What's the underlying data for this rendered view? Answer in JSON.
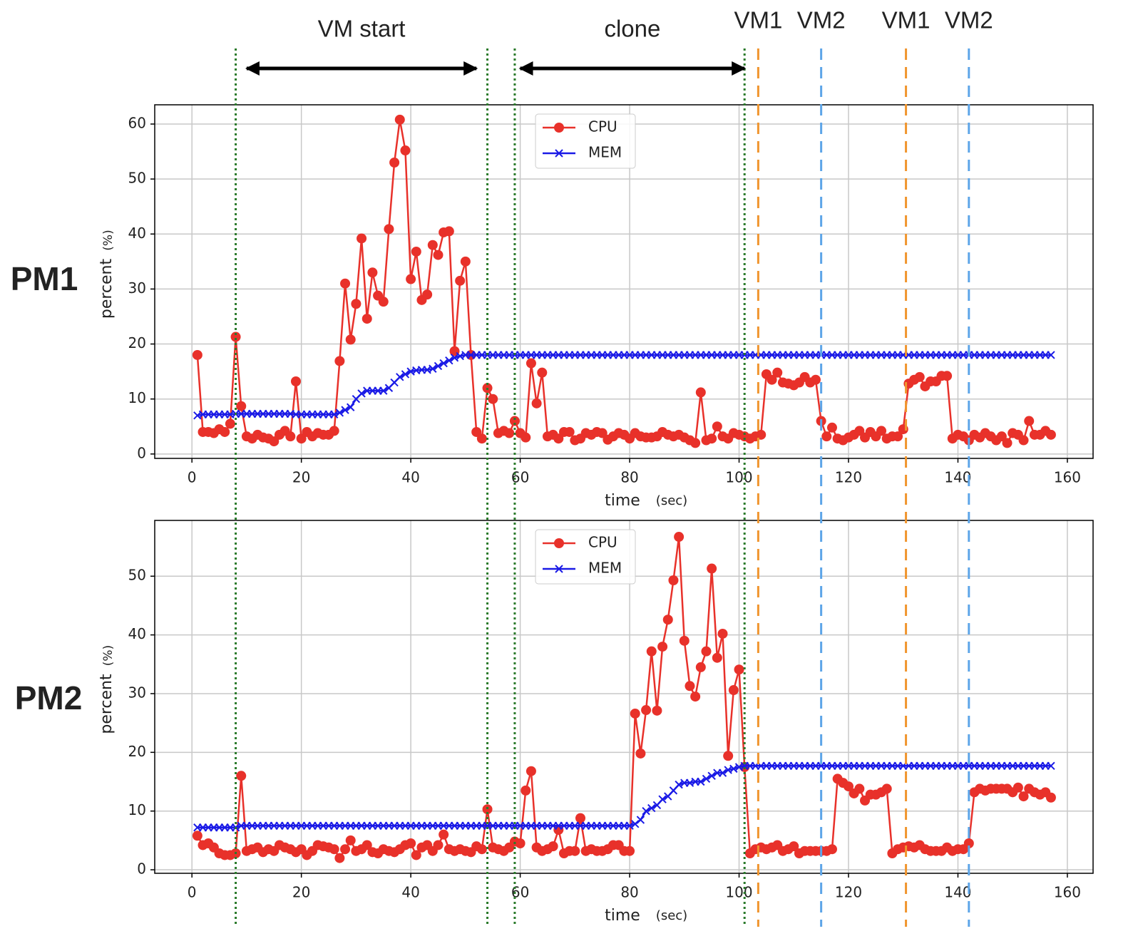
{
  "chart_data": [
    {
      "type": "line",
      "panel_label": "PM1",
      "xlabel": "time",
      "xunit": "(sec)",
      "ylabel": "percent",
      "yunit": "(%)",
      "xlim": [
        -6.8,
        164.7
      ],
      "ylim": [
        -0.8,
        63.5
      ],
      "xticks": [
        0,
        20,
        40,
        60,
        80,
        100,
        120,
        140,
        160
      ],
      "yticks": [
        0,
        10,
        20,
        30,
        40,
        50,
        60
      ],
      "grid": true,
      "legend": "upper center",
      "x": [
        1,
        2,
        3,
        4,
        5,
        6,
        7,
        8,
        9,
        10,
        11,
        12,
        13,
        14,
        15,
        16,
        17,
        18,
        19,
        20,
        21,
        22,
        23,
        24,
        25,
        26,
        27,
        28,
        29,
        30,
        31,
        32,
        33,
        34,
        35,
        36,
        37,
        38,
        39,
        40,
        41,
        42,
        43,
        44,
        45,
        46,
        47,
        48,
        49,
        50,
        51,
        52,
        53,
        54,
        55,
        56,
        57,
        58,
        59,
        60,
        61,
        62,
        63,
        64,
        65,
        66,
        67,
        68,
        69,
        70,
        71,
        72,
        73,
        74,
        75,
        76,
        77,
        78,
        79,
        80,
        81,
        82,
        83,
        84,
        85,
        86,
        87,
        88,
        89,
        90,
        91,
        92,
        93,
        94,
        95,
        96,
        97,
        98,
        99,
        100,
        101,
        102,
        103,
        104,
        105,
        106,
        107,
        108,
        109,
        110,
        111,
        112,
        113,
        114,
        115,
        116,
        117,
        118,
        119,
        120,
        121,
        122,
        123,
        124,
        125,
        126,
        127,
        128,
        129,
        130,
        131,
        132,
        133,
        134,
        135,
        136,
        137,
        138,
        139,
        140,
        141,
        142,
        143,
        144,
        145,
        146,
        147,
        148,
        149,
        150,
        151,
        152,
        153,
        154,
        155,
        156,
        157
      ],
      "series": [
        {
          "name": "CPU",
          "color": "#e8312a",
          "marker": "o",
          "values": [
            18,
            4,
            4,
            3.8,
            4.5,
            4,
            5.5,
            21.3,
            8.7,
            3.2,
            2.8,
            3.5,
            3,
            2.8,
            2.3,
            3.5,
            4.2,
            3.2,
            13.2,
            2.8,
            4,
            3.2,
            3.8,
            3.5,
            3.5,
            4.2,
            16.9,
            31,
            20.8,
            27.3,
            39.2,
            24.6,
            33,
            28.8,
            27.7,
            40.9,
            53,
            60.8,
            55.2,
            31.8,
            36.8,
            28,
            29,
            38,
            36.2,
            40.3,
            40.5,
            18.7,
            31.5,
            35,
            18,
            4,
            2.8,
            12,
            10,
            3.8,
            4.2,
            3.8,
            6,
            3.8,
            3,
            16.5,
            9.2,
            14.8,
            3.2,
            3.5,
            2.8,
            4,
            4,
            2.5,
            2.8,
            3.8,
            3.5,
            4,
            3.8,
            2.6,
            3.2,
            3.8,
            3.5,
            2.8,
            3.8,
            3.2,
            3,
            3,
            3.2,
            4,
            3.5,
            3.2,
            3.5,
            3,
            2.5,
            2,
            11.2,
            2.5,
            2.8,
            5,
            3.2,
            2.8,
            3.8,
            3.5,
            3.2,
            2.8,
            3.2,
            3.5,
            14.5,
            13.5,
            14.8,
            13,
            12.8,
            12.5,
            13,
            14,
            13,
            13.5,
            6,
            3.2,
            4.8,
            2.8,
            2.5,
            3,
            3.5,
            4.2,
            3,
            4,
            3.2,
            4.2,
            2.8,
            3.2,
            3.2,
            4.5,
            12.8,
            13.5,
            14,
            12.3,
            13.2,
            13.2,
            14.2,
            14.2,
            2.8,
            3.5,
            3.2,
            2.5,
            3.5,
            3,
            3.8,
            3.2,
            2.5,
            3.2,
            2,
            3.8,
            3.5,
            2.5,
            6,
            3.5,
            3.5,
            4.2,
            3.5
          ]
        },
        {
          "name": "MEM",
          "color": "#1a1ae6",
          "marker": "x",
          "values": [
            7,
            7.2,
            7.2,
            7.2,
            7.2,
            7.2,
            7.2,
            7.3,
            7.3,
            7.3,
            7.3,
            7.3,
            7.3,
            7.3,
            7.3,
            7.3,
            7.3,
            7.3,
            7.2,
            7.2,
            7.2,
            7.2,
            7.2,
            7.2,
            7.2,
            7.2,
            7.5,
            8,
            8.5,
            10,
            11,
            11.5,
            11.5,
            11.5,
            11.5,
            12,
            13,
            14,
            14.5,
            15,
            15.2,
            15.3,
            15.3,
            15.5,
            16,
            16.5,
            17,
            17.5,
            17.8,
            18,
            18,
            18,
            18,
            18,
            18,
            18,
            18,
            18,
            18,
            18,
            18,
            18,
            18,
            18,
            18,
            18,
            18,
            18,
            18,
            18,
            18,
            18,
            18,
            18,
            18,
            18,
            18,
            18,
            18,
            18,
            18,
            18,
            18,
            18,
            18,
            18,
            18,
            18,
            18,
            18,
            18,
            18,
            18,
            18,
            18,
            18,
            18,
            18,
            18,
            18,
            18,
            18,
            18,
            18,
            18,
            18,
            18,
            18,
            18,
            18,
            18,
            18,
            18,
            18,
            18,
            18,
            18,
            18,
            18,
            18,
            18,
            18,
            18,
            18,
            18,
            18,
            18,
            18,
            18,
            18,
            18,
            18,
            18,
            18,
            18,
            18,
            18,
            18,
            18,
            18,
            18,
            18,
            18,
            18,
            18,
            18,
            18,
            18,
            18,
            18,
            18,
            18,
            18,
            18,
            18,
            18,
            18
          ]
        }
      ]
    },
    {
      "type": "line",
      "panel_label": "PM2",
      "xlabel": "time",
      "xunit": "(sec)",
      "ylabel": "percent",
      "yunit": "(%)",
      "xlim": [
        -6.8,
        164.7
      ],
      "ylim": [
        -0.6,
        59.5
      ],
      "xticks": [
        0,
        20,
        40,
        60,
        80,
        100,
        120,
        140,
        160
      ],
      "yticks": [
        0,
        10,
        20,
        30,
        40,
        50
      ],
      "grid": true,
      "legend": "upper center",
      "x": [
        1,
        2,
        3,
        4,
        5,
        6,
        7,
        8,
        9,
        10,
        11,
        12,
        13,
        14,
        15,
        16,
        17,
        18,
        19,
        20,
        21,
        22,
        23,
        24,
        25,
        26,
        27,
        28,
        29,
        30,
        31,
        32,
        33,
        34,
        35,
        36,
        37,
        38,
        39,
        40,
        41,
        42,
        43,
        44,
        45,
        46,
        47,
        48,
        49,
        50,
        51,
        52,
        53,
        54,
        55,
        56,
        57,
        58,
        59,
        60,
        61,
        62,
        63,
        64,
        65,
        66,
        67,
        68,
        69,
        70,
        71,
        72,
        73,
        74,
        75,
        76,
        77,
        78,
        79,
        80,
        81,
        82,
        83,
        84,
        85,
        86,
        87,
        88,
        89,
        90,
        91,
        92,
        93,
        94,
        95,
        96,
        97,
        98,
        99,
        100,
        101,
        102,
        103,
        104,
        105,
        106,
        107,
        108,
        109,
        110,
        111,
        112,
        113,
        114,
        115,
        116,
        117,
        118,
        119,
        120,
        121,
        122,
        123,
        124,
        125,
        126,
        127,
        128,
        129,
        130,
        131,
        132,
        133,
        134,
        135,
        136,
        137,
        138,
        139,
        140,
        141,
        142,
        143,
        144,
        145,
        146,
        147,
        148,
        149,
        150,
        151,
        152,
        153,
        154,
        155,
        156,
        157
      ],
      "series": [
        {
          "name": "CPU",
          "color": "#e8312a",
          "marker": "o",
          "values": [
            5.8,
            4.2,
            4.5,
            3.8,
            2.8,
            2.5,
            2.5,
            2.8,
            16,
            3.2,
            3.5,
            3.8,
            3,
            3.5,
            3.2,
            4.2,
            3.8,
            3.5,
            3,
            3.5,
            2.5,
            3.2,
            4.2,
            4,
            3.8,
            3.5,
            2,
            3.5,
            5,
            3.2,
            3.5,
            4.2,
            3,
            2.8,
            3.5,
            3.2,
            3,
            3.5,
            4.2,
            4.5,
            2.5,
            3.8,
            4.2,
            3.2,
            4.2,
            6,
            3.5,
            3.2,
            3.5,
            3.2,
            3,
            4,
            3.5,
            10.3,
            3.8,
            3.5,
            3.2,
            3.8,
            4.8,
            4.5,
            13.5,
            16.8,
            3.8,
            3.2,
            3.5,
            4,
            6.8,
            2.8,
            3.2,
            3.2,
            8.8,
            3.2,
            3.5,
            3.2,
            3.2,
            3.5,
            4.2,
            4.2,
            3.2,
            3.2,
            26.6,
            19.8,
            27.2,
            37.2,
            27.1,
            38,
            42.6,
            49.3,
            56.7,
            39,
            31.3,
            29.5,
            34.5,
            37.2,
            51.3,
            36.1,
            40.2,
            19.4,
            30.6,
            34.1,
            17.5,
            2.8,
            3.5,
            3.8,
            3.5,
            3.8,
            4.2,
            3.2,
            3.5,
            4,
            2.8,
            3.2,
            3.2,
            3.2,
            3.2,
            3.2,
            3.5,
            15.5,
            14.8,
            14.2,
            13,
            13.8,
            11.8,
            12.8,
            12.8,
            13.2,
            13.8,
            2.8,
            3.5,
            3.8,
            4,
            3.8,
            4.2,
            3.5,
            3.2,
            3.2,
            3.2,
            3.8,
            3.2,
            3.5,
            3.5,
            4.5,
            13.2,
            13.8,
            13.5,
            13.8,
            13.8,
            13.8,
            13.8,
            13.2,
            14,
            12.5,
            13.8,
            13.2,
            12.8,
            13.2,
            12.3
          ]
        },
        {
          "name": "MEM",
          "color": "#1a1ae6",
          "marker": "x",
          "values": [
            7.2,
            7.2,
            7.2,
            7.2,
            7.2,
            7.2,
            7.2,
            7.2,
            7.5,
            7.5,
            7.5,
            7.5,
            7.5,
            7.5,
            7.5,
            7.5,
            7.5,
            7.5,
            7.5,
            7.5,
            7.5,
            7.5,
            7.5,
            7.5,
            7.5,
            7.5,
            7.5,
            7.5,
            7.5,
            7.5,
            7.5,
            7.5,
            7.5,
            7.5,
            7.5,
            7.5,
            7.5,
            7.5,
            7.5,
            7.5,
            7.5,
            7.5,
            7.5,
            7.5,
            7.5,
            7.5,
            7.5,
            7.5,
            7.5,
            7.5,
            7.5,
            7.5,
            7.5,
            7.5,
            7.5,
            7.5,
            7.5,
            7.5,
            7.5,
            7.5,
            7.5,
            7.5,
            7.5,
            7.5,
            7.5,
            7.5,
            7.5,
            7.5,
            7.5,
            7.5,
            7.5,
            7.5,
            7.5,
            7.5,
            7.5,
            7.5,
            7.5,
            7.5,
            7.5,
            7.5,
            7.8,
            8.5,
            10,
            10.5,
            11,
            12,
            12.5,
            13.5,
            14.5,
            14.8,
            14.8,
            15,
            15,
            15.5,
            16,
            16.5,
            16.5,
            17,
            17.2,
            17.5,
            17.7,
            17.7,
            17.7,
            17.7,
            17.7,
            17.7,
            17.7,
            17.7,
            17.7,
            17.7,
            17.7,
            17.7,
            17.7,
            17.7,
            17.7,
            17.7,
            17.7,
            17.7,
            17.7,
            17.7,
            17.7,
            17.7,
            17.7,
            17.7,
            17.7,
            17.7,
            17.7,
            17.7,
            17.7,
            17.7,
            17.7,
            17.7,
            17.7,
            17.7,
            17.7,
            17.7,
            17.7,
            17.7,
            17.7,
            17.7,
            17.7,
            17.7,
            17.7,
            17.7,
            17.7,
            17.7,
            17.7,
            17.7,
            17.7,
            17.7,
            17.7,
            17.7,
            17.7,
            17.7,
            17.7,
            17.7,
            17.7
          ]
        }
      ]
    }
  ],
  "figure": {
    "vlines": [
      {
        "x": 8,
        "color": "#2a7a2a",
        "style": "dotted"
      },
      {
        "x": 54,
        "color": "#2a7a2a",
        "style": "dotted"
      },
      {
        "x": 59,
        "color": "#2a7a2a",
        "style": "dotted"
      },
      {
        "x": 101,
        "color": "#2a7a2a",
        "style": "dotted"
      },
      {
        "x": 103.5,
        "color": "#f0952e",
        "style": "dashed"
      },
      {
        "x": 115,
        "color": "#5da5e8",
        "style": "dashed"
      },
      {
        "x": 130.5,
        "color": "#f0952e",
        "style": "dashed"
      },
      {
        "x": 142,
        "color": "#5da5e8",
        "style": "dashed"
      }
    ],
    "spans": [
      {
        "label": "VM start",
        "from": 10,
        "to": 52
      },
      {
        "label": "clone",
        "from": 60,
        "to": 101
      }
    ],
    "labels": [
      {
        "text": "VM1",
        "x": 103.5
      },
      {
        "text": "VM2",
        "x": 115
      },
      {
        "text": "VM1",
        "x": 130.5
      },
      {
        "text": "VM2",
        "x": 142
      }
    ]
  }
}
